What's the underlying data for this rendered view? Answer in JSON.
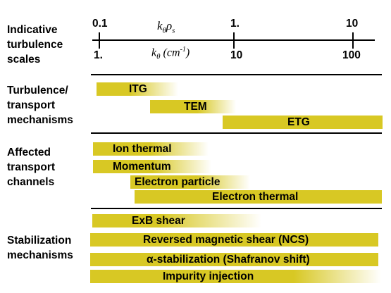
{
  "scales": {
    "heading": [
      "Indicative",
      "turbulence",
      "scales"
    ],
    "top_axis_label": "kθρs",
    "bottom_axis_label": "kθ (cm-1)",
    "top_ticks": [
      "0.1",
      "1.",
      "10"
    ],
    "bottom_ticks": [
      "1.",
      "10",
      "100"
    ]
  },
  "mechanisms": {
    "heading": [
      "Turbulence/",
      "transport",
      "mechanisms"
    ],
    "bars": [
      {
        "label": "ITG"
      },
      {
        "label": "TEM"
      },
      {
        "label": "ETG"
      }
    ]
  },
  "channels": {
    "heading": [
      "Affected",
      "transport",
      "channels"
    ],
    "bars": [
      {
        "label": "Ion thermal"
      },
      {
        "label": "Momentum"
      },
      {
        "label": "Electron particle"
      },
      {
        "label": "Electron thermal"
      }
    ]
  },
  "stabilization": {
    "heading": [
      "Stabilization",
      "mechanisms"
    ],
    "bars": [
      {
        "label": "ExB shear"
      },
      {
        "label": "Reversed magnetic shear (NCS)"
      },
      {
        "label": "α-stabilization (Shafranov shift)"
      },
      {
        "label": "Impurity injection"
      }
    ]
  },
  "colors": {
    "bar": "#d8c824",
    "line": "#000000"
  }
}
